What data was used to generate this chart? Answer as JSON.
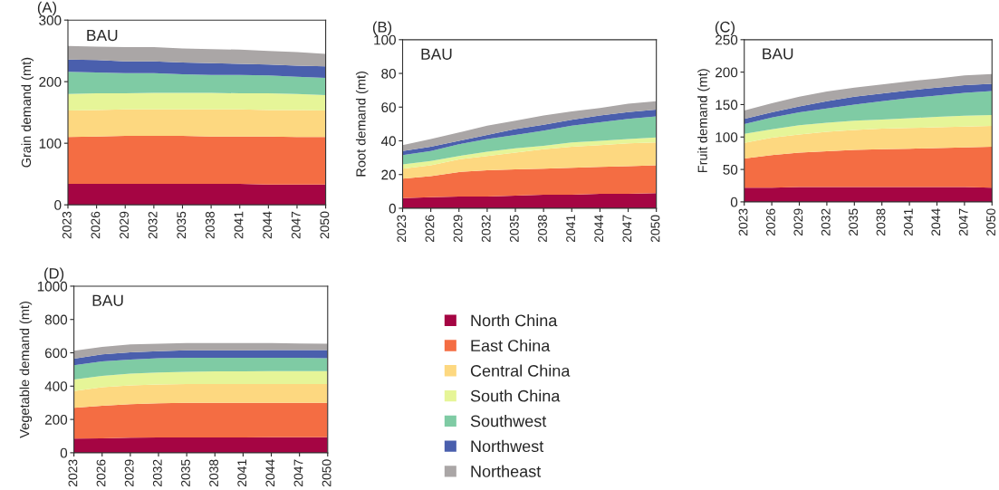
{
  "chart_data": [
    {
      "type": "area",
      "title": "(A)",
      "ylabel": "Grain demand (mt)",
      "annotations": [
        "BAU"
      ],
      "stacked": true,
      "x": [
        2023,
        2026,
        2029,
        2032,
        2035,
        2038,
        2041,
        2044,
        2047,
        2050
      ],
      "xlim": [
        2023,
        2050
      ],
      "xticks": [
        2023,
        2026,
        2029,
        2032,
        2035,
        2038,
        2041,
        2044,
        2047,
        2050
      ],
      "ylim": [
        0,
        300
      ],
      "yticks": [
        0,
        100,
        200,
        300
      ],
      "series": [
        {
          "color": "#a50543",
          "values": [
            34,
            34,
            34,
            34,
            34,
            34,
            34,
            33,
            33,
            33
          ]
        },
        {
          "color": "#f46d43",
          "values": [
            76,
            77,
            78,
            78,
            78,
            77,
            77,
            78,
            77,
            77
          ]
        },
        {
          "color": "#fdd880",
          "values": [
            43,
            43,
            43,
            43,
            43,
            44,
            44,
            43,
            44,
            43
          ]
        },
        {
          "color": "#e6f598",
          "values": [
            27,
            27,
            26,
            27,
            27,
            27,
            26,
            27,
            26,
            25
          ]
        },
        {
          "color": "#7fcba4",
          "values": [
            36,
            34,
            33,
            32,
            30,
            29,
            30,
            29,
            28,
            28
          ]
        },
        {
          "color": "#4a5fad",
          "values": [
            20,
            20,
            19,
            19,
            19,
            19,
            18,
            18,
            18,
            19
          ]
        },
        {
          "color": "#aaa6a6",
          "values": [
            22,
            22,
            23,
            23,
            23,
            23,
            23,
            22,
            22,
            20
          ]
        }
      ]
    },
    {
      "type": "area",
      "title": "(B)",
      "ylabel": "Root demand (mt)",
      "annotations": [
        "BAU"
      ],
      "stacked": true,
      "x": [
        2023,
        2026,
        2029,
        2032,
        2035,
        2038,
        2041,
        2044,
        2047,
        2050
      ],
      "xlim": [
        2023,
        2050
      ],
      "xticks": [
        2023,
        2026,
        2029,
        2032,
        2035,
        2038,
        2041,
        2044,
        2047,
        2050
      ],
      "ylim": [
        0,
        100
      ],
      "yticks": [
        0,
        20,
        40,
        60,
        80,
        100
      ],
      "series": [
        {
          "color": "#a50543",
          "values": [
            6,
            6.5,
            7,
            7,
            7.5,
            8,
            8,
            8.5,
            8.5,
            9
          ]
        },
        {
          "color": "#f46d43",
          "values": [
            11.5,
            12.5,
            14.5,
            15.5,
            15.5,
            15.5,
            16,
            16,
            16.5,
            16.5
          ]
        },
        {
          "color": "#fdd880",
          "values": [
            6,
            6.5,
            7.5,
            8.5,
            10,
            11.5,
            12.5,
            13,
            13.5,
            13.5
          ]
        },
        {
          "color": "#e6f598",
          "values": [
            2.5,
            2.5,
            2,
            2.5,
            2.5,
            2,
            2.5,
            2.5,
            2.5,
            3
          ]
        },
        {
          "color": "#7fcba4",
          "values": [
            5.5,
            6,
            7,
            7.5,
            8,
            9,
            10,
            11,
            12,
            12.5
          ]
        },
        {
          "color": "#4a5fad",
          "values": [
            2.5,
            2.5,
            2,
            2.5,
            3.5,
            3.5,
            3.5,
            4,
            4,
            4
          ]
        },
        {
          "color": "#aaa6a6",
          "values": [
            3.5,
            4.5,
            5,
            5.5,
            5,
            5.5,
            5,
            4.5,
            5,
            5
          ]
        }
      ]
    },
    {
      "type": "area",
      "title": "(C)",
      "ylabel": "Fruit demand (mt)",
      "annotations": [
        "BAU"
      ],
      "stacked": true,
      "x": [
        2023,
        2026,
        2029,
        2032,
        2035,
        2038,
        2041,
        2044,
        2047,
        2050
      ],
      "xlim": [
        2023,
        2050
      ],
      "xticks": [
        2023,
        2026,
        2029,
        2032,
        2035,
        2038,
        2041,
        2044,
        2047,
        2050
      ],
      "ylim": [
        0,
        250
      ],
      "yticks": [
        0,
        50,
        100,
        150,
        200,
        250
      ],
      "series": [
        {
          "color": "#a50543",
          "values": [
            22,
            22,
            23,
            23,
            23,
            23,
            23,
            23,
            23,
            22
          ]
        },
        {
          "color": "#f46d43",
          "values": [
            45,
            50,
            53,
            55,
            57,
            58,
            59,
            60,
            61,
            63
          ]
        },
        {
          "color": "#fdd880",
          "values": [
            24,
            27,
            28,
            30,
            31,
            32,
            32,
            32,
            32,
            32
          ]
        },
        {
          "color": "#e6f598",
          "values": [
            14,
            13,
            14,
            14,
            14,
            14,
            15,
            16,
            17,
            17
          ]
        },
        {
          "color": "#7fcba4",
          "values": [
            15,
            18,
            20,
            22,
            25,
            28,
            31,
            33,
            35,
            37
          ]
        },
        {
          "color": "#4a5fad",
          "values": [
            8,
            8,
            9,
            11,
            12,
            12,
            12,
            12,
            12,
            11
          ]
        },
        {
          "color": "#aaa6a6",
          "values": [
            13,
            14,
            15,
            15,
            14,
            14,
            14,
            14,
            15,
            15
          ]
        }
      ]
    },
    {
      "type": "area",
      "title": "(D)",
      "ylabel": "Vegetable demand (mt)",
      "annotations": [
        "BAU"
      ],
      "stacked": true,
      "legend": "right",
      "x": [
        2023,
        2026,
        2029,
        2032,
        2035,
        2038,
        2041,
        2044,
        2047,
        2050
      ],
      "xlim": [
        2023,
        2050
      ],
      "xticks": [
        2023,
        2026,
        2029,
        2032,
        2035,
        2038,
        2041,
        2044,
        2047,
        2050
      ],
      "ylim": [
        0,
        1000
      ],
      "yticks": [
        0,
        200,
        400,
        600,
        800,
        1000
      ],
      "series": [
        {
          "name": "North China",
          "color": "#a50543",
          "values": [
            85,
            87,
            90,
            92,
            92,
            92,
            92,
            93,
            93,
            93
          ]
        },
        {
          "name": "East China",
          "color": "#f46d43",
          "values": [
            185,
            195,
            202,
            205,
            208,
            208,
            208,
            207,
            207,
            207
          ]
        },
        {
          "name": "Central China",
          "color": "#fdd880",
          "values": [
            100,
            111,
            113,
            113,
            113,
            113,
            113,
            113,
            113,
            113
          ]
        },
        {
          "name": "South China",
          "color": "#e6f598",
          "values": [
            70,
            69,
            70,
            72,
            73,
            75,
            76,
            77,
            77,
            77
          ]
        },
        {
          "name": "Southwest",
          "color": "#7fcba4",
          "values": [
            85,
            86,
            85,
            86,
            84,
            82,
            81,
            80,
            80,
            78
          ]
        },
        {
          "name": "Northwest",
          "color": "#4a5fad",
          "values": [
            40,
            42,
            43,
            42,
            45,
            45,
            45,
            46,
            46,
            48
          ]
        },
        {
          "name": "Northeast",
          "color": "#aaa6a6",
          "values": [
            47,
            45,
            47,
            45,
            43,
            43,
            43,
            42,
            40,
            39
          ]
        }
      ]
    }
  ]
}
